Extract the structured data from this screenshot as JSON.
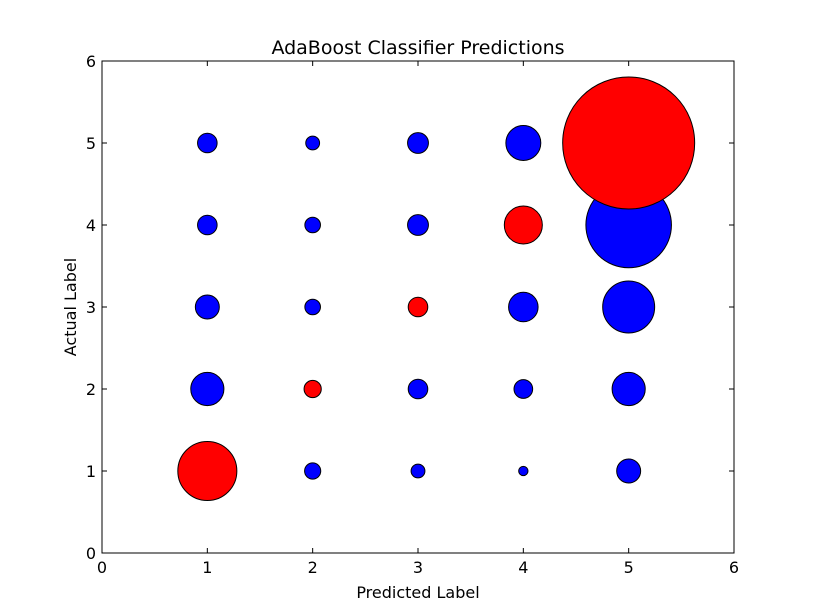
{
  "chart_data": {
    "type": "scatter",
    "title": "AdaBoost Classifier Predictions",
    "xlabel": "Predicted Label",
    "ylabel": "Actual Label",
    "xlim": [
      0,
      6
    ],
    "ylim": [
      0,
      6
    ],
    "xticks": [
      "0",
      "1",
      "2",
      "3",
      "4",
      "5",
      "6"
    ],
    "yticks": [
      "0",
      "1",
      "2",
      "3",
      "4",
      "5",
      "6"
    ],
    "grid": false,
    "colors": {
      "correct": "#ff0000",
      "incorrect": "#0000ff",
      "edge": "#000000"
    },
    "size_note": "marker area proportional to count",
    "points": [
      {
        "x": 1,
        "y": 1,
        "size": 0.2,
        "correct": true
      },
      {
        "x": 2,
        "y": 1,
        "size": 0.015,
        "correct": false
      },
      {
        "x": 3,
        "y": 1,
        "size": 0.011,
        "correct": false
      },
      {
        "x": 4,
        "y": 1,
        "size": 0.005,
        "correct": false
      },
      {
        "x": 5,
        "y": 1,
        "size": 0.033,
        "correct": false
      },
      {
        "x": 1,
        "y": 2,
        "size": 0.063,
        "correct": false
      },
      {
        "x": 2,
        "y": 2,
        "size": 0.017,
        "correct": true
      },
      {
        "x": 3,
        "y": 2,
        "size": 0.022,
        "correct": false
      },
      {
        "x": 4,
        "y": 2,
        "size": 0.02,
        "correct": false
      },
      {
        "x": 5,
        "y": 2,
        "size": 0.063,
        "correct": false
      },
      {
        "x": 1,
        "y": 3,
        "size": 0.033,
        "correct": false
      },
      {
        "x": 2,
        "y": 3,
        "size": 0.014,
        "correct": false
      },
      {
        "x": 3,
        "y": 3,
        "size": 0.022,
        "correct": true
      },
      {
        "x": 4,
        "y": 3,
        "size": 0.05,
        "correct": false
      },
      {
        "x": 5,
        "y": 3,
        "size": 0.155,
        "correct": false
      },
      {
        "x": 1,
        "y": 4,
        "size": 0.022,
        "correct": false
      },
      {
        "x": 2,
        "y": 4,
        "size": 0.014,
        "correct": false
      },
      {
        "x": 3,
        "y": 4,
        "size": 0.025,
        "correct": false
      },
      {
        "x": 4,
        "y": 4,
        "size": 0.083,
        "correct": true
      },
      {
        "x": 5,
        "y": 4,
        "size": 0.42,
        "correct": false
      },
      {
        "x": 1,
        "y": 5,
        "size": 0.022,
        "correct": false
      },
      {
        "x": 2,
        "y": 5,
        "size": 0.011,
        "correct": false
      },
      {
        "x": 3,
        "y": 5,
        "size": 0.025,
        "correct": false
      },
      {
        "x": 4,
        "y": 5,
        "size": 0.07,
        "correct": false
      },
      {
        "x": 5,
        "y": 5,
        "size": 1.0,
        "correct": true
      }
    ]
  }
}
